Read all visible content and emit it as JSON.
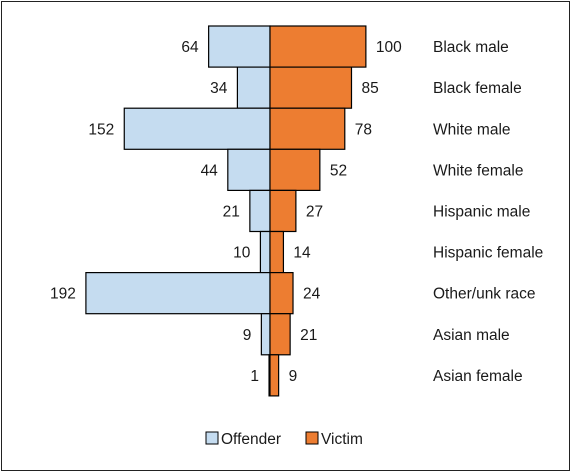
{
  "chart_data": {
    "type": "bar",
    "orientation": "horizontal-diverging",
    "categories": [
      "Black male",
      "Black female",
      "White male",
      "White female",
      "Hispanic male",
      "Hispanic female",
      "Other/unk race",
      "Asian male",
      "Asian female"
    ],
    "series": [
      {
        "name": "Offender",
        "color": "#c5dcf0",
        "direction": "left",
        "values": [
          64,
          34,
          152,
          44,
          21,
          10,
          192,
          9,
          1
        ]
      },
      {
        "name": "Victim",
        "color": "#ed7d31",
        "direction": "right",
        "values": [
          100,
          85,
          78,
          52,
          27,
          14,
          24,
          21,
          9
        ]
      }
    ],
    "value_labels": {
      "offender": [
        "64",
        "34",
        "152",
        "44",
        "21",
        "10",
        "192",
        "9",
        "1"
      ],
      "victim": [
        "100",
        "85",
        "78",
        "52",
        "27",
        "14",
        "24",
        "21",
        "9"
      ]
    },
    "legend": {
      "position": "bottom",
      "items": [
        {
          "label": "Offender",
          "color": "#c5dcf0"
        },
        {
          "label": "Victim",
          "color": "#ed7d31"
        }
      ]
    },
    "grid": false,
    "bar_outline": "#000000"
  }
}
